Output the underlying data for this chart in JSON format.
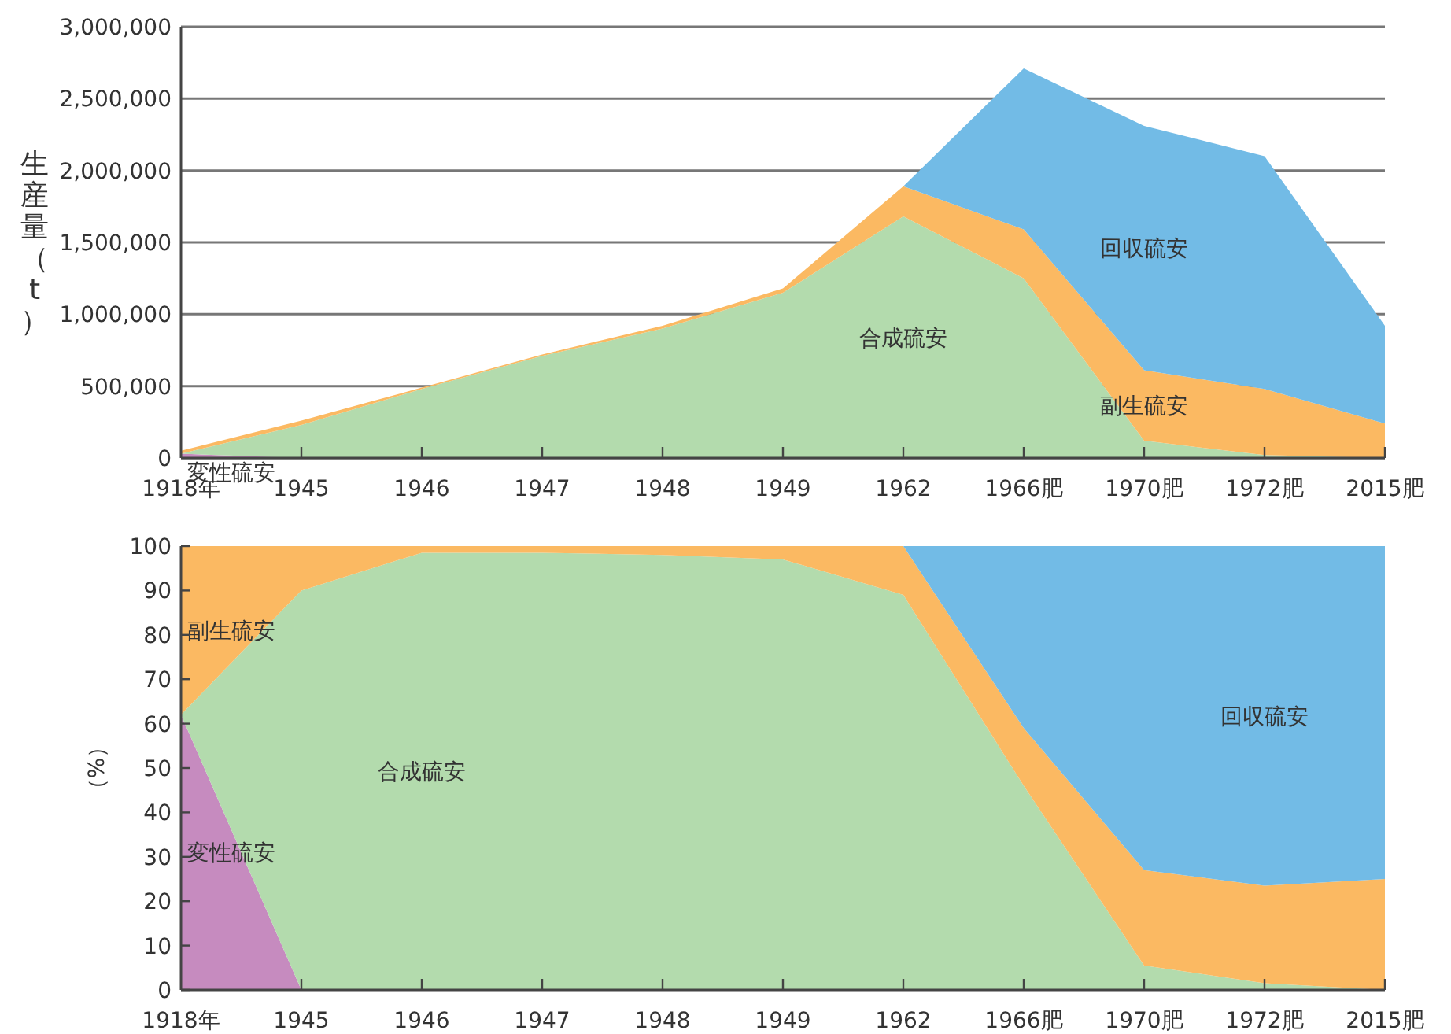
{
  "chart_data": [
    {
      "type": "area",
      "stacked": true,
      "ylabel": "生産量（t）",
      "categories": [
        "1918年",
        "1945",
        "1946",
        "1947",
        "1948",
        "1949",
        "1962",
        "1966肥",
        "1970肥",
        "1972肥",
        "2015肥"
      ],
      "series": [
        {
          "name": "変性硫安",
          "color": "#c68bbf",
          "values": [
            30000,
            0,
            0,
            0,
            0,
            0,
            0,
            0,
            0,
            0,
            0
          ]
        },
        {
          "name": "合成硫安",
          "color": "#b3dbad",
          "values": [
            0,
            230000,
            480000,
            710000,
            900000,
            1150000,
            1680000,
            1250000,
            120000,
            20000,
            0
          ]
        },
        {
          "name": "副生硫安",
          "color": "#fbb962",
          "values": [
            20000,
            30000,
            10000,
            10000,
            20000,
            30000,
            210000,
            340000,
            490000,
            460000,
            240000
          ]
        },
        {
          "name": "回収硫安",
          "color": "#72bbe6",
          "values": [
            0,
            0,
            0,
            0,
            0,
            0,
            0,
            1120000,
            1700000,
            1620000,
            680000
          ]
        }
      ],
      "ylim": [
        0,
        3000000
      ],
      "yticks": [
        0,
        {
          "value": 500000,
          "label": "500,000"
        },
        {
          "value": 1000000,
          "label": "1,000,000"
        },
        {
          "value": 1500000,
          "label": "1,500,000"
        },
        {
          "value": 2000000,
          "label": "2,000,000"
        },
        {
          "value": 2500000,
          "label": "2,500,000"
        },
        {
          "value": 3000000,
          "label": "3,000,000"
        }
      ],
      "grid": "y"
    },
    {
      "type": "area",
      "stacked": true,
      "ylabel": "（%）",
      "categories": [
        "1918年",
        "1945",
        "1946",
        "1947",
        "1948",
        "1949",
        "1962",
        "1966肥",
        "1970肥",
        "1972肥",
        "2015肥"
      ],
      "series": [
        {
          "name": "変性硫安",
          "color": "#c68bbf",
          "values": [
            62,
            0,
            0,
            0,
            0,
            0,
            0,
            0,
            0,
            0,
            0
          ]
        },
        {
          "name": "合成硫安",
          "color": "#b3dbad",
          "values": [
            0,
            90,
            98.5,
            98.5,
            98,
            97,
            89,
            46,
            5.5,
            1.5,
            0
          ]
        },
        {
          "name": "副生硫安",
          "color": "#fbb962",
          "values": [
            38,
            10,
            1.5,
            1.5,
            2,
            3,
            11,
            13,
            21.5,
            22,
            25
          ]
        },
        {
          "name": "回収硫安",
          "color": "#72bbe6",
          "values": [
            0,
            0,
            0,
            0,
            0,
            0,
            0,
            41,
            73,
            76.5,
            75
          ]
        }
      ],
      "ylim": [
        0,
        100
      ],
      "yticks": [
        0,
        10,
        20,
        30,
        40,
        50,
        60,
        70,
        80,
        90,
        100
      ]
    }
  ]
}
